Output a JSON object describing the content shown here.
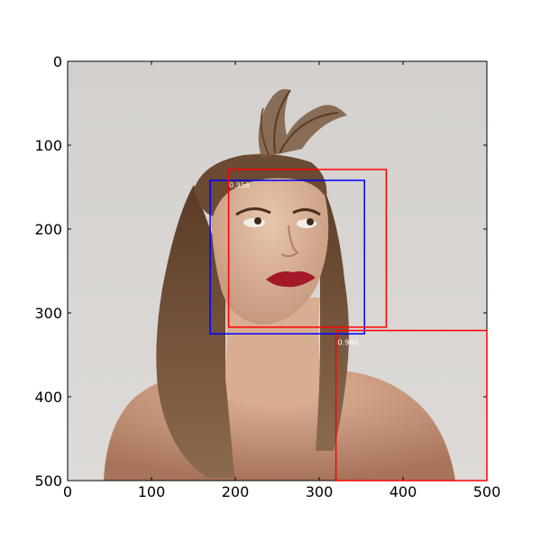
{
  "image": {
    "description_free": true
  },
  "axes": {
    "xlim": [
      0,
      500
    ],
    "ylim": [
      500,
      0
    ],
    "x_ticks": [
      0,
      100,
      200,
      300,
      400,
      500
    ],
    "y_ticks": [
      0,
      100,
      200,
      300,
      400,
      500
    ],
    "x_tick_labels": [
      "0",
      "100",
      "200",
      "300",
      "400",
      "500"
    ],
    "y_tick_labels": [
      "0",
      "100",
      "200",
      "300",
      "400",
      "500"
    ],
    "grid": false
  },
  "detections": [
    {
      "label": "0.956",
      "color": "#0000ff",
      "x0": 170,
      "y0": 142,
      "x1": 354,
      "y1": 325
    },
    {
      "label": "",
      "color": "#ff0000",
      "x0": 192,
      "y0": 129,
      "x1": 380,
      "y1": 317
    },
    {
      "label": "0.940",
      "color": "#ff0000",
      "x0": 320,
      "y0": 321,
      "x1": 500,
      "y1": 500
    }
  ],
  "colors": {
    "background": "#d9d6d3",
    "axis": "#000000"
  }
}
